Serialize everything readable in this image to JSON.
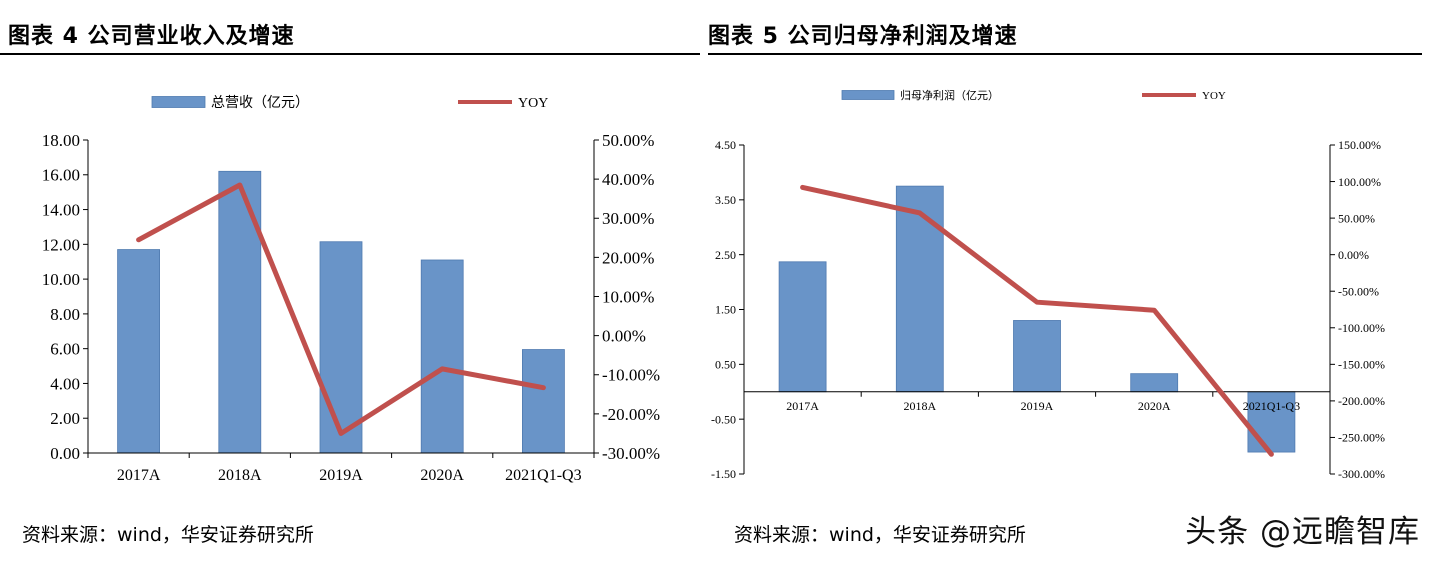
{
  "colors": {
    "bar": "#6994c8",
    "bar_edge": "#4f7ab0",
    "line": "#c0504d",
    "axis": "#000000"
  },
  "chart_data": [
    {
      "type": "bar",
      "title": "图表 4  公司营业收入及增速",
      "source": "资料来源：wind，华安证券研究所",
      "categories": [
        "2017A",
        "2018A",
        "2019A",
        "2020A",
        "2021Q1-Q3"
      ],
      "series": [
        {
          "name": "总营收（亿元）",
          "type": "bar",
          "axis": "left",
          "values": [
            11.7,
            16.2,
            12.15,
            11.1,
            5.95
          ]
        },
        {
          "name": "YOY",
          "type": "line",
          "axis": "right",
          "values": [
            24.5,
            38.5,
            -25.0,
            -8.5,
            -13.3
          ]
        }
      ],
      "y_left": {
        "min": 0,
        "max": 18,
        "step": 2,
        "ticks": [
          "0.00",
          "2.00",
          "4.00",
          "6.00",
          "8.00",
          "10.00",
          "12.00",
          "14.00",
          "16.00",
          "18.00"
        ]
      },
      "y_right": {
        "min": -30,
        "max": 50,
        "step": 10,
        "ticks": [
          "-30.00%",
          "-20.00%",
          "-10.00%",
          "0.00%",
          "10.00%",
          "20.00%",
          "30.00%",
          "40.00%",
          "50.00%"
        ]
      },
      "legend_position": "top"
    },
    {
      "type": "bar",
      "title": "图表 5  公司归母净利润及增速",
      "source": "资料来源：wind，华安证券研究所",
      "categories": [
        "2017A",
        "2018A",
        "2019A",
        "2020A",
        "2021Q1-Q3"
      ],
      "series": [
        {
          "name": "归母净利润（亿元）",
          "type": "bar",
          "axis": "left",
          "values": [
            2.37,
            3.75,
            1.3,
            0.33,
            -1.1
          ]
        },
        {
          "name": "YOY",
          "type": "line",
          "axis": "right",
          "values": [
            92,
            57,
            -65,
            -76,
            -273
          ]
        }
      ],
      "y_left": {
        "min": -1.5,
        "max": 4.5,
        "step": 1,
        "ticks": [
          "-1.50",
          "-0.50",
          "0.50",
          "1.50",
          "2.50",
          "3.50",
          "4.50"
        ]
      },
      "y_right": {
        "min": -300,
        "max": 150,
        "step": 50,
        "ticks": [
          "-300.00%",
          "-250.00%",
          "-200.00%",
          "-150.00%",
          "-100.00%",
          "-50.00%",
          "0.00%",
          "50.00%",
          "100.00%",
          "150.00%"
        ]
      },
      "legend_position": "top"
    }
  ],
  "watermark": "头条 @远瞻智库"
}
